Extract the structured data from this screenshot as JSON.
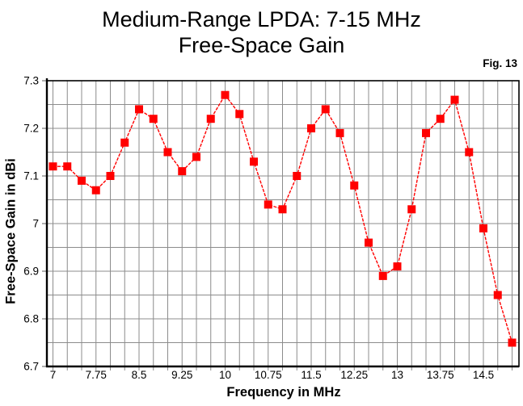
{
  "page": {
    "background": "#ffffff"
  },
  "chart_data": {
    "type": "line",
    "title": "Medium-Range LPDA:  7-15 MHz",
    "subtitle": "Free-Space Gain",
    "fig_label": "Fig. 13",
    "xlabel": "Frequency in MHz",
    "ylabel": "Free-Space Gain in dBi",
    "series_name": "Free-Space Gain (dBi)",
    "x": [
      7.0,
      7.25,
      7.5,
      7.75,
      8.0,
      8.25,
      8.5,
      8.75,
      9.0,
      9.25,
      9.5,
      9.75,
      10.0,
      10.25,
      10.5,
      10.75,
      11.0,
      11.25,
      11.5,
      11.75,
      12.0,
      12.25,
      12.5,
      12.75,
      13.0,
      13.25,
      13.5,
      13.75,
      14.0,
      14.25,
      14.5,
      14.75,
      15.0
    ],
    "values": [
      7.12,
      7.12,
      7.09,
      7.07,
      7.1,
      7.17,
      7.24,
      7.22,
      7.15,
      7.11,
      7.14,
      7.22,
      7.27,
      7.23,
      7.13,
      7.04,
      7.03,
      7.1,
      7.2,
      7.24,
      7.19,
      7.08,
      6.96,
      6.89,
      6.91,
      7.03,
      7.19,
      7.22,
      7.26,
      7.15,
      6.99,
      6.85,
      6.75
    ],
    "xlim": [
      7,
      15
    ],
    "ylim": [
      6.7,
      7.3
    ],
    "x_grid_step": 0.25,
    "y_grid_step": 0.05,
    "x_tick_values": [
      7,
      7.75,
      8.5,
      9.25,
      10,
      10.75,
      11.5,
      12.25,
      13,
      13.75,
      14.5
    ],
    "x_tick_labels": [
      "7",
      "7.75",
      "8.5",
      "9.25",
      "10",
      "10.75",
      "11.5",
      "12.25",
      "13",
      "13.75",
      "14.5"
    ],
    "y_tick_values": [
      6.7,
      6.8,
      6.9,
      7.0,
      7.1,
      7.2,
      7.3
    ],
    "y_tick_labels": [
      "6.7",
      "6.8",
      "6.9",
      "7",
      "7.1",
      "7.2",
      "7.3"
    ],
    "grid": true,
    "legend_position": "none",
    "marker": "filled-square",
    "line_color": "#ff0000",
    "grid_color": "#8c8c8c",
    "axis_color": "#000000",
    "text_color": "#000000"
  }
}
